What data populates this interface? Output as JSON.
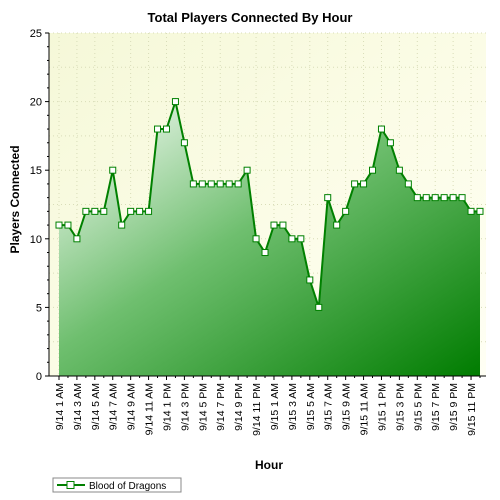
{
  "chart_data": {
    "type": "area",
    "title": "Total Players Connected By Hour",
    "xlabel": "Hour",
    "ylabel": "Players Connected",
    "ylim": [
      0,
      25
    ],
    "yticks": [
      0,
      5,
      10,
      15,
      20,
      25
    ],
    "grid": true,
    "legend_position": "bottom-left",
    "tick_labels": [
      "9/14 1 AM",
      "9/14 3 AM",
      "9/14 5 AM",
      "9/14 7 AM",
      "9/14 9 AM",
      "9/14 11 AM",
      "9/14 1 PM",
      "9/14 3 PM",
      "9/14 5 PM",
      "9/14 7 PM",
      "9/14 9 PM",
      "9/14 11 PM",
      "9/15 1 AM",
      "9/15 3 AM",
      "9/15 5 AM",
      "9/15 7 AM",
      "9/15 9 AM",
      "9/15 11 AM",
      "9/15 1 PM",
      "9/15 3 PM",
      "9/15 5 PM",
      "9/15 7 PM",
      "9/15 9 PM",
      "9/15 11 PM"
    ],
    "series": [
      {
        "name": "Blood of Dragons",
        "color": "#008000",
        "values": [
          11,
          11,
          10,
          12,
          12,
          12,
          15,
          11,
          12,
          12,
          12,
          18,
          18,
          20,
          17,
          14,
          14,
          14,
          14,
          14,
          14,
          15,
          10,
          9,
          11,
          11,
          10,
          10,
          7,
          5,
          13,
          11,
          12,
          14,
          14,
          15,
          18,
          17,
          15,
          14,
          13,
          13,
          13,
          13,
          13,
          13,
          12,
          12
        ]
      }
    ]
  }
}
